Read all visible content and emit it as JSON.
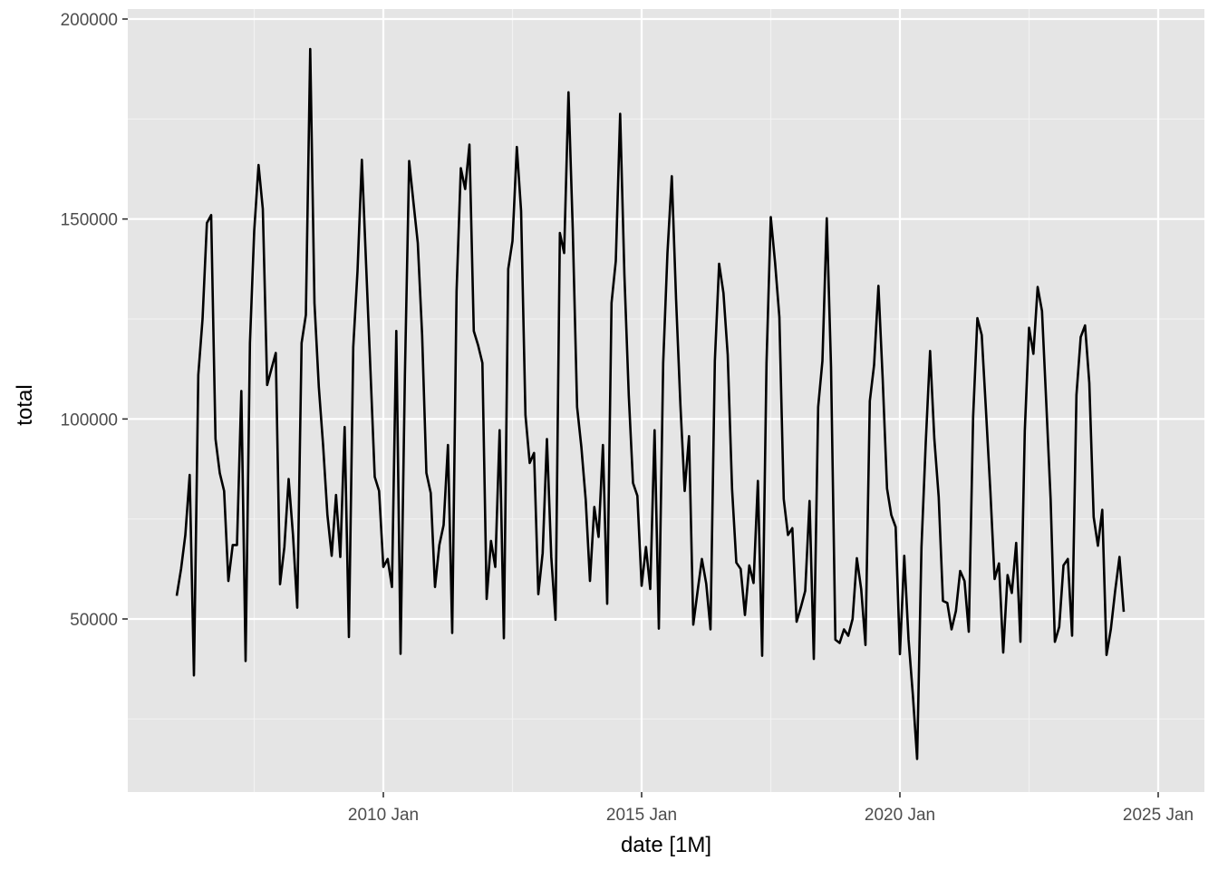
{
  "chart_data": {
    "type": "line",
    "title": "",
    "xlabel": "date [1M]",
    "ylabel": "total",
    "x_start": "2006 Jan",
    "x_end": "2024 May",
    "frequency": "monthly",
    "x_ticks": [
      "2010 Jan",
      "2015 Jan",
      "2020 Jan",
      "2025 Jan"
    ],
    "y_ticks": [
      50000,
      100000,
      150000,
      200000
    ],
    "y_tick_labels": [
      "50000",
      "100000",
      "150000",
      "200000"
    ],
    "ylim": [
      10000,
      200000
    ],
    "grid": true,
    "legend": "none",
    "line_color": "#000000",
    "panel_background": "#e5e5e5",
    "grid_color": "#ffffff",
    "series": [
      {
        "name": "total",
        "values": [
          55800,
          62500,
          71000,
          86000,
          35900,
          111000,
          125000,
          149000,
          151000,
          95000,
          86500,
          82000,
          59500,
          68500,
          68500,
          107000,
          39500,
          119000,
          147000,
          163500,
          152500,
          108500,
          112500,
          116500,
          58700,
          68000,
          85000,
          71000,
          52800,
          119000,
          126000,
          192500,
          129000,
          108000,
          93500,
          76000,
          65800,
          81000,
          65500,
          98000,
          45500,
          118000,
          137000,
          164800,
          138500,
          112000,
          85500,
          82000,
          63000,
          65000,
          58000,
          122000,
          41300,
          111000,
          164500,
          154000,
          144000,
          121000,
          86500,
          81500,
          58000,
          68500,
          73500,
          93500,
          46500,
          132000,
          162700,
          157500,
          168600,
          122000,
          118500,
          114000,
          55000,
          69500,
          63000,
          97200,
          45200,
          137500,
          144500,
          168000,
          152000,
          101000,
          89000,
          91500,
          56200,
          66500,
          95000,
          65500,
          49800,
          146500,
          141500,
          181700,
          147500,
          103000,
          93000,
          79800,
          59500,
          78000,
          70500,
          93500,
          53800,
          129000,
          139500,
          176300,
          136000,
          106000,
          84000,
          80800,
          58300,
          68000,
          57500,
          97200,
          47600,
          114000,
          141500,
          160700,
          130000,
          103500,
          82000,
          95700,
          48600,
          57000,
          65000,
          58800,
          47400,
          114500,
          138800,
          131500,
          116000,
          82500,
          64100,
          62500,
          51000,
          63400,
          59000,
          84500,
          40800,
          114000,
          150500,
          139000,
          125500,
          80000,
          71000,
          72700,
          49300,
          53000,
          57000,
          79500,
          40000,
          103000,
          114500,
          150200,
          113000,
          44800,
          44000,
          47400,
          45800,
          50000,
          65200,
          57400,
          43500,
          104500,
          113500,
          133300,
          110000,
          82600,
          76000,
          73000,
          41200,
          65800,
          45000,
          31000,
          15000,
          68000,
          94000,
          117000,
          95000,
          80500,
          54500,
          54000,
          47400,
          52000,
          62000,
          59500,
          46800,
          100500,
          125200,
          121000,
          102000,
          82000,
          60000,
          63900,
          41600,
          61000,
          56500,
          69000,
          44300,
          97000,
          122800,
          116300,
          133000,
          127000,
          104000,
          80000,
          44300,
          48000,
          63400,
          65000,
          45800,
          106000,
          120500,
          123400,
          109000,
          75500,
          68300,
          77300,
          41000,
          47500,
          57000,
          65500,
          51800
        ]
      }
    ]
  }
}
